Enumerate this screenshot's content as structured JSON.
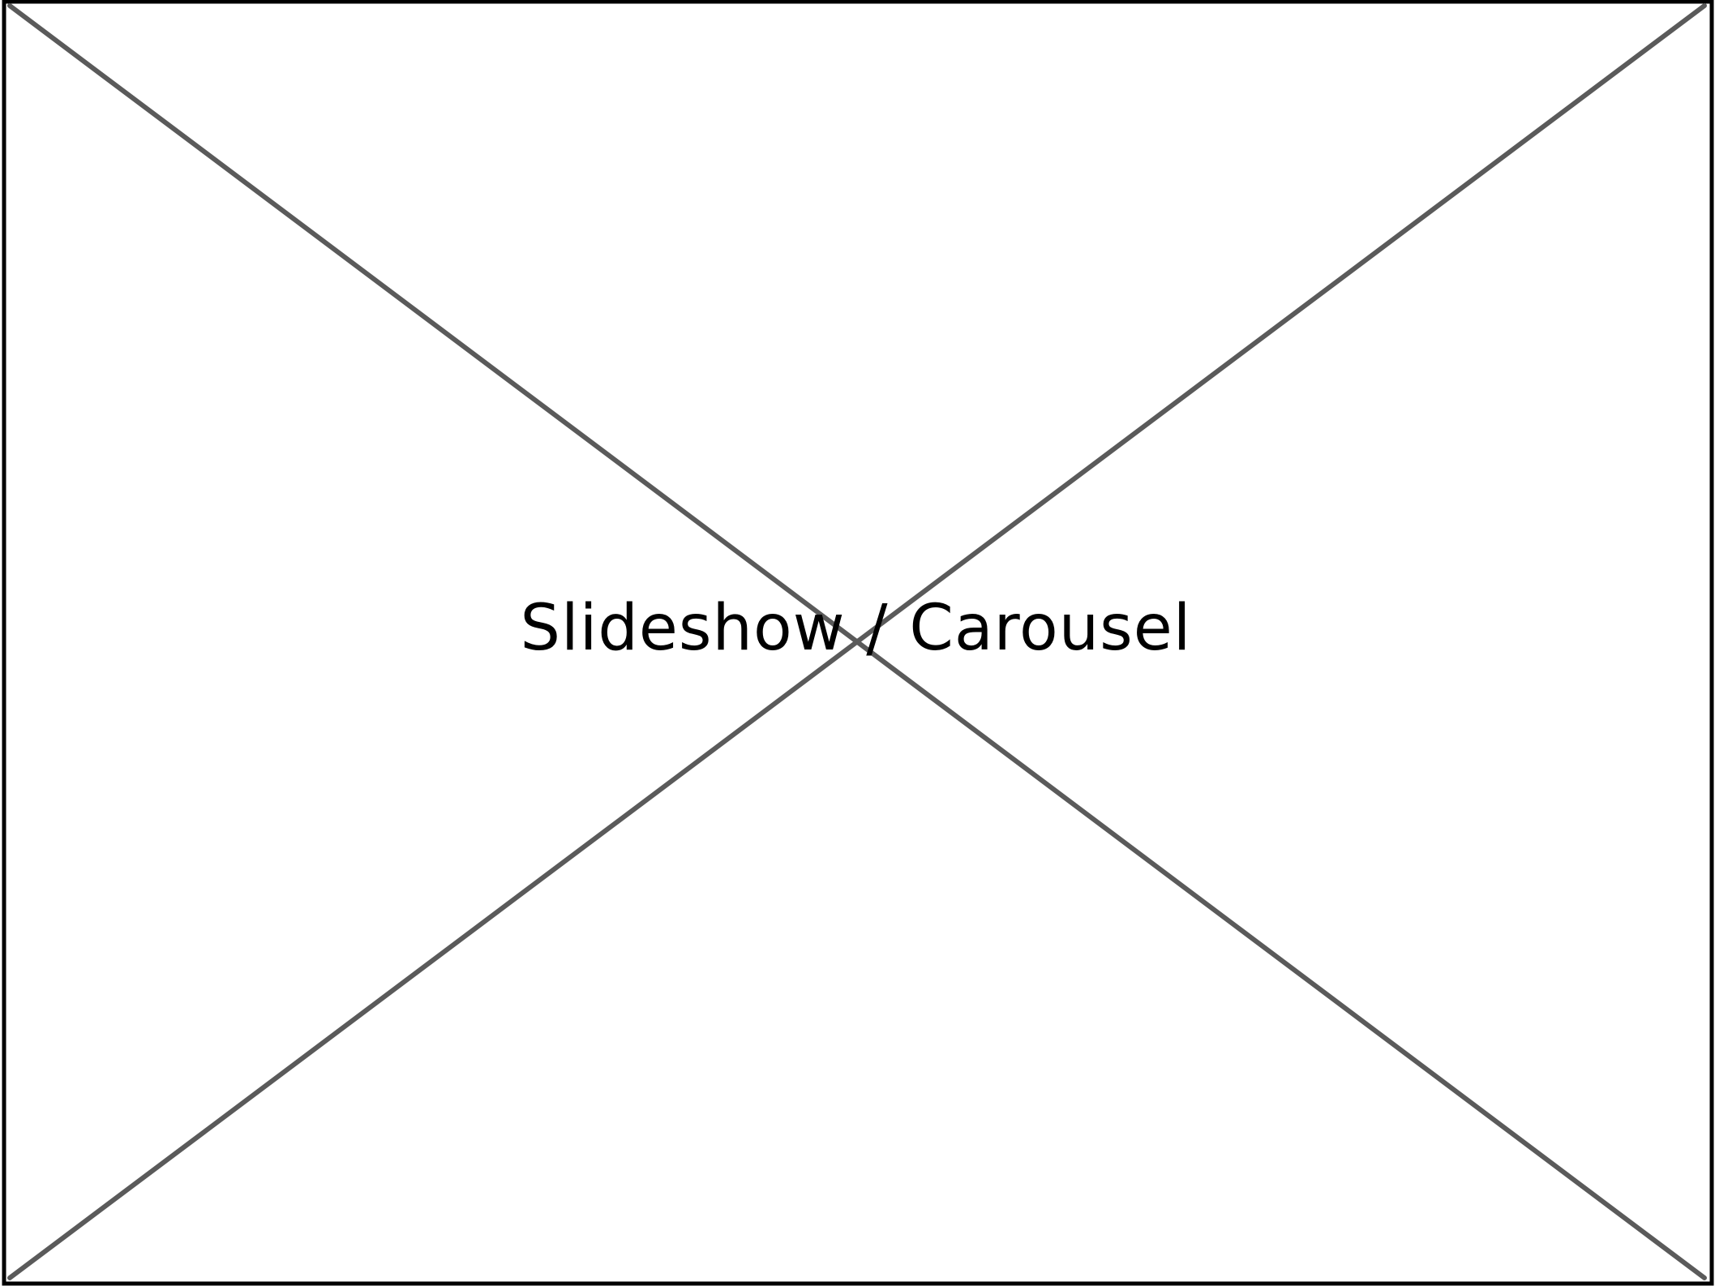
{
  "carousel": {
    "label": "Slideshow / Carousel",
    "colors": {
      "border": "#000000",
      "diagonal": "#5a5a5a",
      "background": "#ffffff",
      "text": "#000000"
    }
  }
}
